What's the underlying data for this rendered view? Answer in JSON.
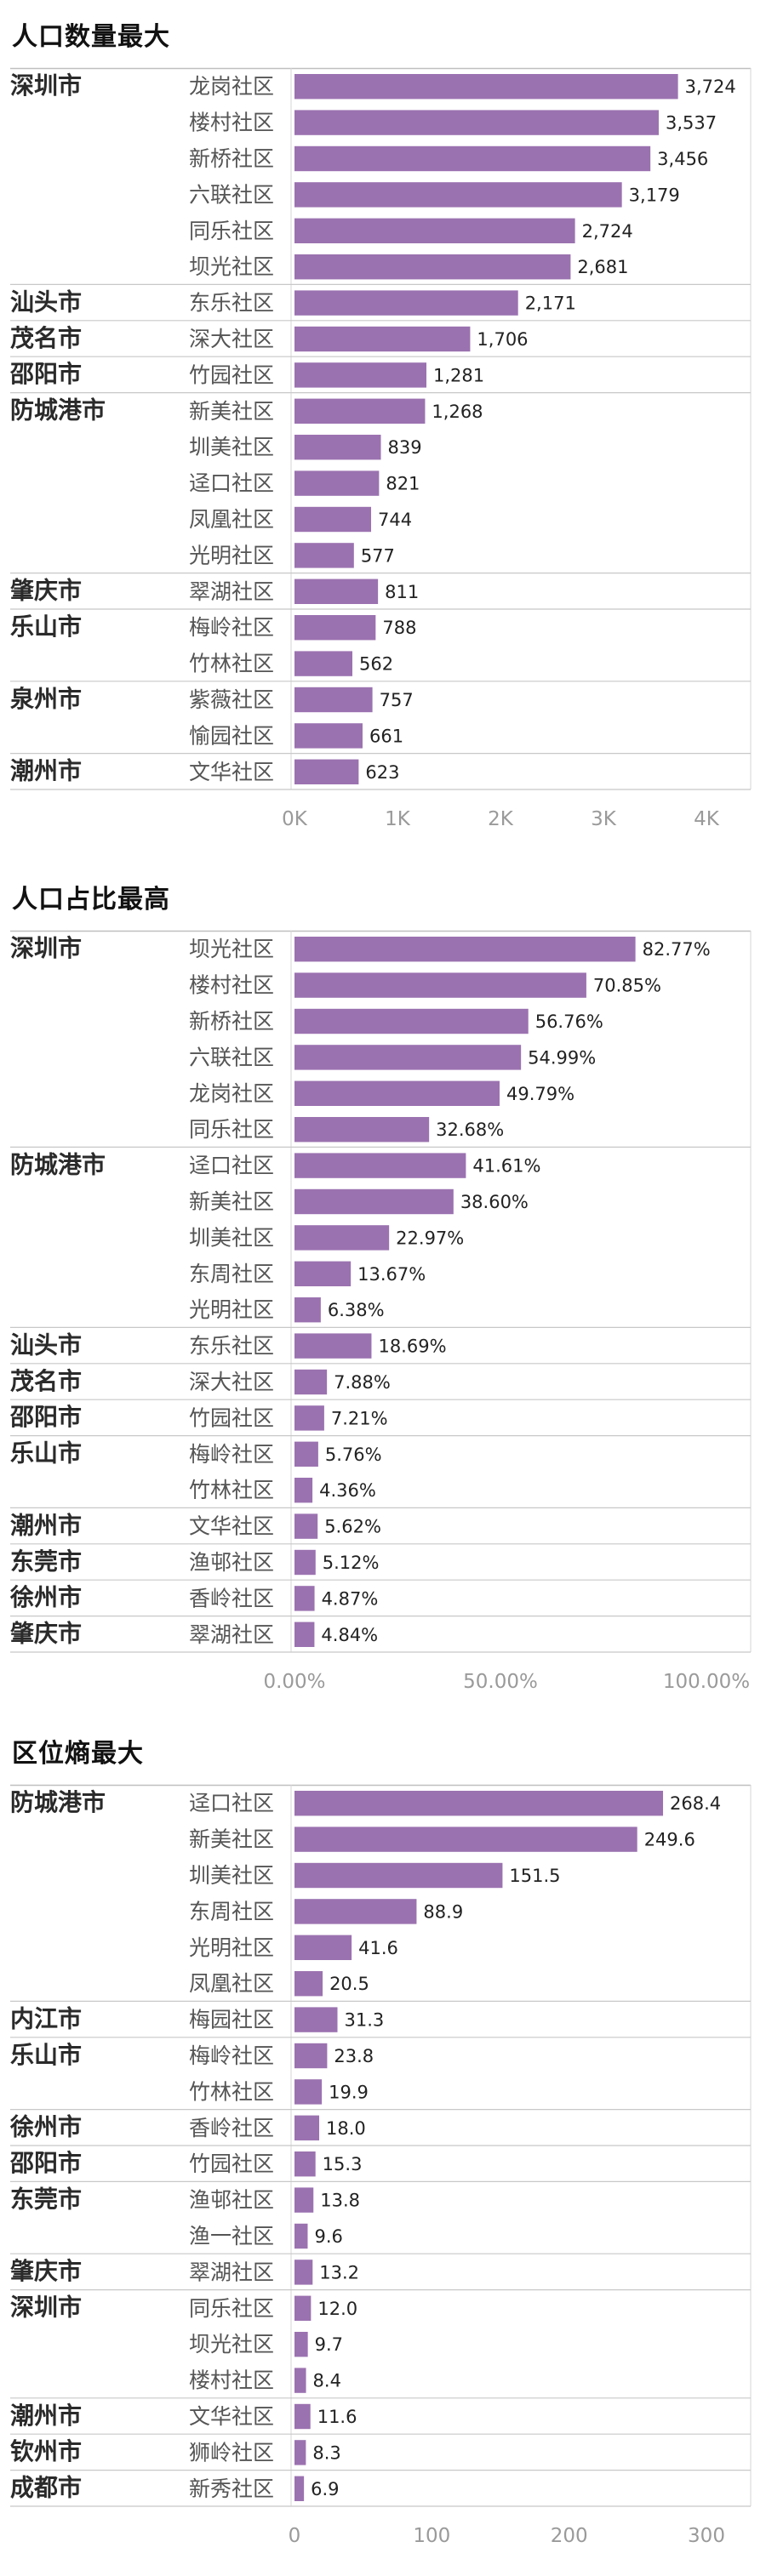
{
  "charts": [
    {
      "title": "人口数量最大",
      "chart_data": {
        "type": "bar",
        "orientation": "horizontal",
        "xlim": [
          0,
          4000
        ],
        "xticks": [
          0,
          1000,
          2000,
          3000,
          4000
        ],
        "tick_labels": [
          "0K",
          "1K",
          "2K",
          "3K",
          "4K"
        ],
        "bar_color": "#9b72b0",
        "groups": [
          {
            "city": "深圳市",
            "rows": [
              {
                "community": "龙岗社区",
                "value": 3724,
                "label": "3,724"
              },
              {
                "community": "楼村社区",
                "value": 3537,
                "label": "3,537"
              },
              {
                "community": "新桥社区",
                "value": 3456,
                "label": "3,456"
              },
              {
                "community": "六联社区",
                "value": 3179,
                "label": "3,179"
              },
              {
                "community": "同乐社区",
                "value": 2724,
                "label": "2,724"
              },
              {
                "community": "坝光社区",
                "value": 2681,
                "label": "2,681"
              }
            ]
          },
          {
            "city": "汕头市",
            "rows": [
              {
                "community": "东乐社区",
                "value": 2171,
                "label": "2,171"
              }
            ]
          },
          {
            "city": "茂名市",
            "rows": [
              {
                "community": "深大社区",
                "value": 1706,
                "label": "1,706"
              }
            ]
          },
          {
            "city": "邵阳市",
            "rows": [
              {
                "community": "竹园社区",
                "value": 1281,
                "label": "1,281"
              }
            ]
          },
          {
            "city": "防城港市",
            "rows": [
              {
                "community": "新美社区",
                "value": 1268,
                "label": "1,268"
              },
              {
                "community": "圳美社区",
                "value": 839,
                "label": "839"
              },
              {
                "community": "迳口社区",
                "value": 821,
                "label": "821"
              },
              {
                "community": "凤凰社区",
                "value": 744,
                "label": "744"
              },
              {
                "community": "光明社区",
                "value": 577,
                "label": "577"
              }
            ]
          },
          {
            "city": "肇庆市",
            "rows": [
              {
                "community": "翠湖社区",
                "value": 811,
                "label": "811"
              }
            ]
          },
          {
            "city": "乐山市",
            "rows": [
              {
                "community": "梅岭社区",
                "value": 788,
                "label": "788"
              },
              {
                "community": "竹林社区",
                "value": 562,
                "label": "562"
              }
            ]
          },
          {
            "city": "泉州市",
            "rows": [
              {
                "community": "紫薇社区",
                "value": 757,
                "label": "757"
              },
              {
                "community": "愉园社区",
                "value": 661,
                "label": "661"
              }
            ]
          },
          {
            "city": "潮州市",
            "rows": [
              {
                "community": "文华社区",
                "value": 623,
                "label": "623"
              }
            ]
          }
        ]
      }
    },
    {
      "title": "人口占比最高",
      "chart_data": {
        "type": "bar",
        "orientation": "horizontal",
        "xlim": [
          0,
          100
        ],
        "xticks": [
          0,
          50,
          100
        ],
        "tick_labels": [
          "0.00%",
          "50.00%",
          "100.00%"
        ],
        "bar_color": "#9b72b0",
        "groups": [
          {
            "city": "深圳市",
            "rows": [
              {
                "community": "坝光社区",
                "value": 82.77,
                "label": "82.77%"
              },
              {
                "community": "楼村社区",
                "value": 70.85,
                "label": "70.85%"
              },
              {
                "community": "新桥社区",
                "value": 56.76,
                "label": "56.76%"
              },
              {
                "community": "六联社区",
                "value": 54.99,
                "label": "54.99%"
              },
              {
                "community": "龙岗社区",
                "value": 49.79,
                "label": "49.79%"
              },
              {
                "community": "同乐社区",
                "value": 32.68,
                "label": "32.68%"
              }
            ]
          },
          {
            "city": "防城港市",
            "rows": [
              {
                "community": "迳口社区",
                "value": 41.61,
                "label": "41.61%"
              },
              {
                "community": "新美社区",
                "value": 38.6,
                "label": "38.60%"
              },
              {
                "community": "圳美社区",
                "value": 22.97,
                "label": "22.97%"
              },
              {
                "community": "东周社区",
                "value": 13.67,
                "label": "13.67%"
              },
              {
                "community": "光明社区",
                "value": 6.38,
                "label": "6.38%"
              }
            ]
          },
          {
            "city": "汕头市",
            "rows": [
              {
                "community": "东乐社区",
                "value": 18.69,
                "label": "18.69%"
              }
            ]
          },
          {
            "city": "茂名市",
            "rows": [
              {
                "community": "深大社区",
                "value": 7.88,
                "label": "7.88%"
              }
            ]
          },
          {
            "city": "邵阳市",
            "rows": [
              {
                "community": "竹园社区",
                "value": 7.21,
                "label": "7.21%"
              }
            ]
          },
          {
            "city": "乐山市",
            "rows": [
              {
                "community": "梅岭社区",
                "value": 5.76,
                "label": "5.76%"
              },
              {
                "community": "竹林社区",
                "value": 4.36,
                "label": "4.36%"
              }
            ]
          },
          {
            "city": "潮州市",
            "rows": [
              {
                "community": "文华社区",
                "value": 5.62,
                "label": "5.62%"
              }
            ]
          },
          {
            "city": "东莞市",
            "rows": [
              {
                "community": "渔邨社区",
                "value": 5.12,
                "label": "5.12%"
              }
            ]
          },
          {
            "city": "徐州市",
            "rows": [
              {
                "community": "香岭社区",
                "value": 4.87,
                "label": "4.87%"
              }
            ]
          },
          {
            "city": "肇庆市",
            "rows": [
              {
                "community": "翠湖社区",
                "value": 4.84,
                "label": "4.84%"
              }
            ]
          }
        ]
      }
    },
    {
      "title": "区位熵最大",
      "chart_data": {
        "type": "bar",
        "orientation": "horizontal",
        "xlim": [
          0,
          300
        ],
        "xticks": [
          0,
          100,
          200,
          300
        ],
        "tick_labels": [
          "0",
          "100",
          "200",
          "300"
        ],
        "bar_color": "#9b72b0",
        "groups": [
          {
            "city": "防城港市",
            "rows": [
              {
                "community": "迳口社区",
                "value": 268.4,
                "label": "268.4"
              },
              {
                "community": "新美社区",
                "value": 249.6,
                "label": "249.6"
              },
              {
                "community": "圳美社区",
                "value": 151.5,
                "label": "151.5"
              },
              {
                "community": "东周社区",
                "value": 88.9,
                "label": "88.9"
              },
              {
                "community": "光明社区",
                "value": 41.6,
                "label": "41.6"
              },
              {
                "community": "凤凰社区",
                "value": 20.5,
                "label": "20.5"
              }
            ]
          },
          {
            "city": "内江市",
            "rows": [
              {
                "community": "梅园社区",
                "value": 31.3,
                "label": "31.3"
              }
            ]
          },
          {
            "city": "乐山市",
            "rows": [
              {
                "community": "梅岭社区",
                "value": 23.8,
                "label": "23.8"
              },
              {
                "community": "竹林社区",
                "value": 19.9,
                "label": "19.9"
              }
            ]
          },
          {
            "city": "徐州市",
            "rows": [
              {
                "community": "香岭社区",
                "value": 18.0,
                "label": "18.0"
              }
            ]
          },
          {
            "city": "邵阳市",
            "rows": [
              {
                "community": "竹园社区",
                "value": 15.3,
                "label": "15.3"
              }
            ]
          },
          {
            "city": "东莞市",
            "rows": [
              {
                "community": "渔邨社区",
                "value": 13.8,
                "label": "13.8"
              },
              {
                "community": "渔一社区",
                "value": 9.6,
                "label": "9.6"
              }
            ]
          },
          {
            "city": "肇庆市",
            "rows": [
              {
                "community": "翠湖社区",
                "value": 13.2,
                "label": "13.2"
              }
            ]
          },
          {
            "city": "深圳市",
            "rows": [
              {
                "community": "同乐社区",
                "value": 12.0,
                "label": "12.0"
              },
              {
                "community": "坝光社区",
                "value": 9.7,
                "label": "9.7"
              },
              {
                "community": "楼村社区",
                "value": 8.4,
                "label": "8.4"
              }
            ]
          },
          {
            "city": "潮州市",
            "rows": [
              {
                "community": "文华社区",
                "value": 11.6,
                "label": "11.6"
              }
            ]
          },
          {
            "city": "钦州市",
            "rows": [
              {
                "community": "狮岭社区",
                "value": 8.3,
                "label": "8.3"
              }
            ]
          },
          {
            "city": "成都市",
            "rows": [
              {
                "community": "新秀社区",
                "value": 6.9,
                "label": "6.9"
              }
            ]
          }
        ]
      }
    }
  ]
}
